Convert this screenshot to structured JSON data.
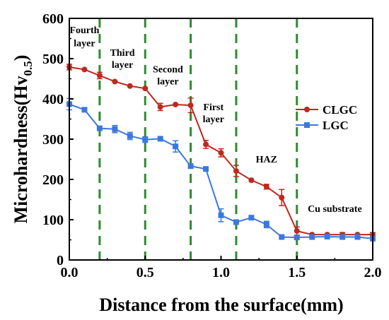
{
  "chart_data": {
    "type": "line",
    "xlabel": "Distance from the surface(mm)",
    "ylabel_main": "Microhardness(Hv",
    "ylabel_sub": "0.5",
    "ylabel_close": ")",
    "xlim": [
      0,
      2.0
    ],
    "ylim": [
      0,
      600
    ],
    "x_ticks": [
      "0.0",
      "0.5",
      "1.0",
      "1.5",
      "2.0"
    ],
    "x_tick_values": [
      0,
      0.5,
      1.0,
      1.5,
      2.0
    ],
    "y_ticks": [
      "0",
      "100",
      "200",
      "300",
      "400",
      "500",
      "600"
    ],
    "y_tick_values": [
      0,
      100,
      200,
      300,
      400,
      500,
      600
    ],
    "grid": false,
    "legend_position": "right",
    "boundaries_x": [
      0.2,
      0.5,
      0.8,
      1.1,
      1.5
    ],
    "boundary_color": "#2e8b2e",
    "regions": [
      {
        "lines": [
          "Fourth",
          "layer"
        ],
        "x": 0.1,
        "y": [
          563,
          531
        ]
      },
      {
        "lines": [
          "Third",
          "layer"
        ],
        "x": 0.35,
        "y": [
          507,
          477
        ]
      },
      {
        "lines": [
          "Second",
          "layer"
        ],
        "x": 0.65,
        "y": [
          466,
          436
        ]
      },
      {
        "lines": [
          "First",
          "layer"
        ],
        "x": 0.95,
        "y": [
          372,
          342
        ]
      },
      {
        "lines": [
          "HAZ"
        ],
        "x": 1.3,
        "y": [
          242
        ]
      },
      {
        "lines": [
          "Cu substrate"
        ],
        "x": 1.75,
        "y": [
          119
        ]
      }
    ],
    "series": [
      {
        "name": "CLGC",
        "color": "#c0281e",
        "marker": "circle",
        "x": [
          0,
          0.1,
          0.2,
          0.3,
          0.4,
          0.5,
          0.6,
          0.7,
          0.8,
          0.9,
          1.0,
          1.1,
          1.2,
          1.3,
          1.4,
          1.5,
          1.6,
          1.7,
          1.8,
          1.9,
          2.0
        ],
        "y": [
          479,
          473,
          458,
          443,
          432,
          426,
          380,
          386,
          384,
          287,
          266,
          221,
          198,
          182,
          155,
          72,
          63,
          63,
          63,
          63,
          63
        ],
        "err": [
          7,
          0,
          8,
          0,
          0,
          0,
          9,
          0,
          18,
          10,
          10,
          14,
          0,
          6,
          20,
          10,
          0,
          0,
          5,
          0,
          5
        ]
      },
      {
        "name": "LGC",
        "color": "#3c78dc",
        "marker": "square",
        "x": [
          0,
          0.1,
          0.2,
          0.3,
          0.4,
          0.5,
          0.6,
          0.7,
          0.8,
          0.9,
          1.0,
          1.1,
          1.2,
          1.3,
          1.4,
          1.5,
          1.6,
          1.7,
          1.8,
          1.9,
          2.0
        ],
        "y": [
          387,
          373,
          327,
          325,
          308,
          299,
          301,
          282,
          233,
          226,
          111,
          94,
          105,
          88,
          57,
          56,
          57,
          58,
          57,
          57,
          53
        ],
        "err": [
          14,
          0,
          0,
          9,
          9,
          7,
          0,
          14,
          0,
          0,
          16,
          0,
          0,
          8,
          0,
          0,
          0,
          0,
          0,
          0,
          5
        ]
      }
    ]
  }
}
